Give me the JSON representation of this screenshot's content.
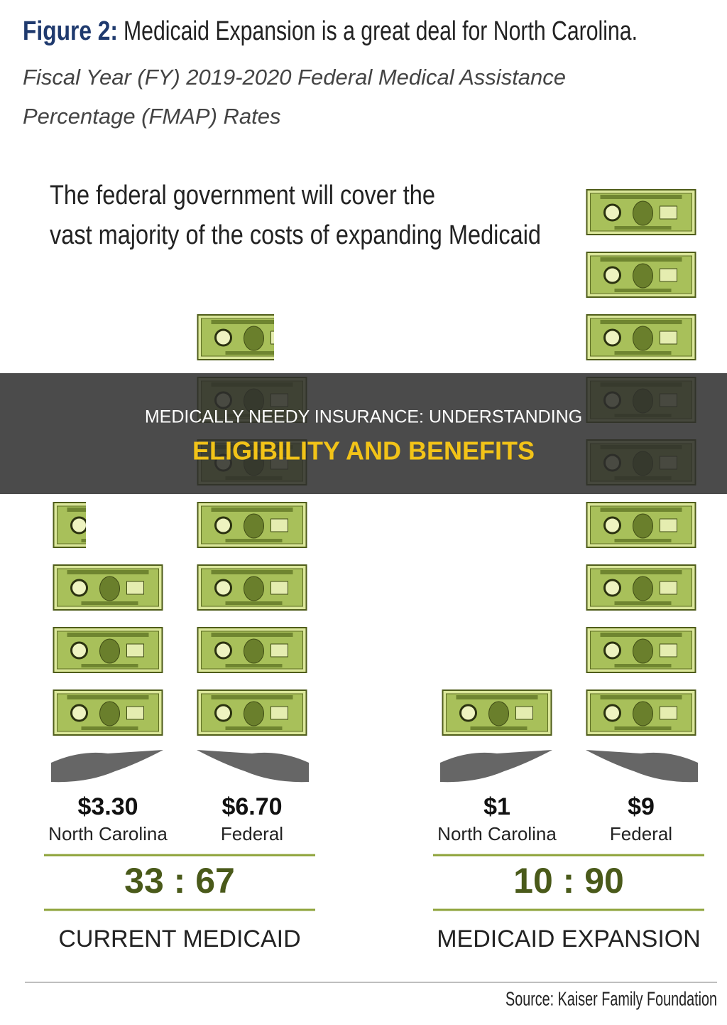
{
  "figure": {
    "label": "Figure 2:",
    "title": "Medicaid Expansion is a great deal for North Carolina.",
    "subtitle_lines": [
      "Fiscal Year (FY) 2019-2020 Federal Medical Assistance",
      "Percentage (FMAP) Rates"
    ],
    "headline_lines": [
      "The federal government will cover the",
      "vast majority of the costs of expanding Medicaid"
    ]
  },
  "panels": [
    {
      "name": "CURRENT MEDICAID",
      "ratio": "33 : 67",
      "bars": [
        {
          "label": "North Carolina",
          "value": 3.3,
          "value_label": "$3.30"
        },
        {
          "label": "Federal",
          "value": 6.7,
          "value_label": "$6.70"
        }
      ]
    },
    {
      "name": "MEDICAID EXPANSION",
      "ratio": "10 : 90",
      "bars": [
        {
          "label": "North Carolina",
          "value": 1,
          "value_label": "$1"
        },
        {
          "label": "Federal",
          "value": 9,
          "value_label": "$9"
        }
      ]
    }
  ],
  "source": "Source: Kaiser Family Foundation",
  "banner": {
    "line1": "MEDICALLY NEEDY INSURANCE: UNDERSTANDING",
    "line2": "ELIGIBILITY AND BENEFITS"
  }
}
